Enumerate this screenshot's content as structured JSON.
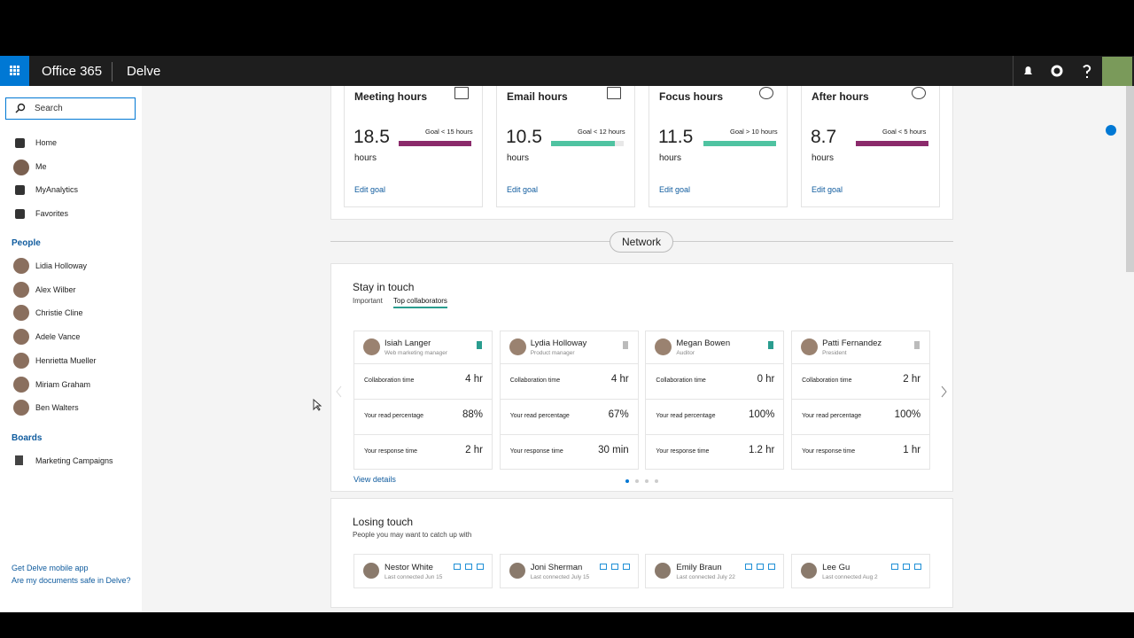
{
  "header": {
    "suite": "Office 365",
    "app": "Delve"
  },
  "sidebar": {
    "search": "Search",
    "nav": [
      "Home",
      "Me",
      "MyAnalytics",
      "Favorites"
    ],
    "people_heading": "People",
    "people": [
      "Lidia Holloway",
      "Alex Wilber",
      "Christie Cline",
      "Adele Vance",
      "Henrietta Mueller",
      "Miriam Graham",
      "Ben Walters"
    ],
    "boards_heading": "Boards",
    "boards": [
      "Marketing Campaigns"
    ],
    "footer_links": [
      "Get Delve mobile app",
      "Are my documents safe in Delve?"
    ]
  },
  "hours_cards": [
    {
      "title": "Meeting hours",
      "value": "18.5",
      "unit": "hours",
      "goal": "Goal < 15 hours",
      "action": "Edit goal"
    },
    {
      "title": "Email hours",
      "value": "10.5",
      "unit": "hours",
      "goal": "Goal < 12 hours",
      "action": "Edit goal"
    },
    {
      "title": "Focus hours",
      "value": "11.5",
      "unit": "hours",
      "goal": "Goal > 10 hours",
      "action": "Edit goal"
    },
    {
      "title": "After hours",
      "value": "8.7",
      "unit": "hours",
      "goal": "Goal < 5 hours",
      "action": "Edit goal"
    }
  ],
  "divider": "Network",
  "stay_in_touch": {
    "title": "Stay in touch",
    "tabs": [
      "Important",
      "Top collaborators"
    ],
    "people": [
      {
        "name": "Isiah Langer",
        "role": "Web marketing manager",
        "rows": [
          {
            "label": "Collaboration time",
            "value": "4 hr"
          },
          {
            "label": "Your read percentage",
            "value": "88%"
          },
          {
            "label": "Your response time",
            "value": "2 hr"
          }
        ]
      },
      {
        "name": "Lydia Holloway",
        "role": "Product manager",
        "rows": [
          {
            "label": "Collaboration time",
            "value": "4 hr"
          },
          {
            "label": "Your read percentage",
            "value": "67%"
          },
          {
            "label": "Your response time",
            "value": "30 min"
          }
        ]
      },
      {
        "name": "Megan Bowen",
        "role": "Auditor",
        "rows": [
          {
            "label": "Collaboration time",
            "value": "0 hr"
          },
          {
            "label": "Your read percentage",
            "value": "100%"
          },
          {
            "label": "Your response time",
            "value": "1.2 hr"
          }
        ]
      },
      {
        "name": "Patti Fernandez",
        "role": "President",
        "rows": [
          {
            "label": "Collaboration time",
            "value": "2 hr"
          },
          {
            "label": "Your read percentage",
            "value": "100%"
          },
          {
            "label": "Your response time",
            "value": "1 hr"
          }
        ]
      }
    ],
    "link": "View details"
  },
  "losing_touch": {
    "title": "Losing touch",
    "subtitle": "People you may want to catch up with",
    "people": [
      {
        "name": "Nestor White",
        "last": "Last connected Jun 15"
      },
      {
        "name": "Joni Sherman",
        "last": "Last connected July 15"
      },
      {
        "name": "Emily Braun",
        "last": "Last connected July 22"
      },
      {
        "name": "Lee Gu",
        "last": "Last connected Aug 2"
      }
    ]
  }
}
